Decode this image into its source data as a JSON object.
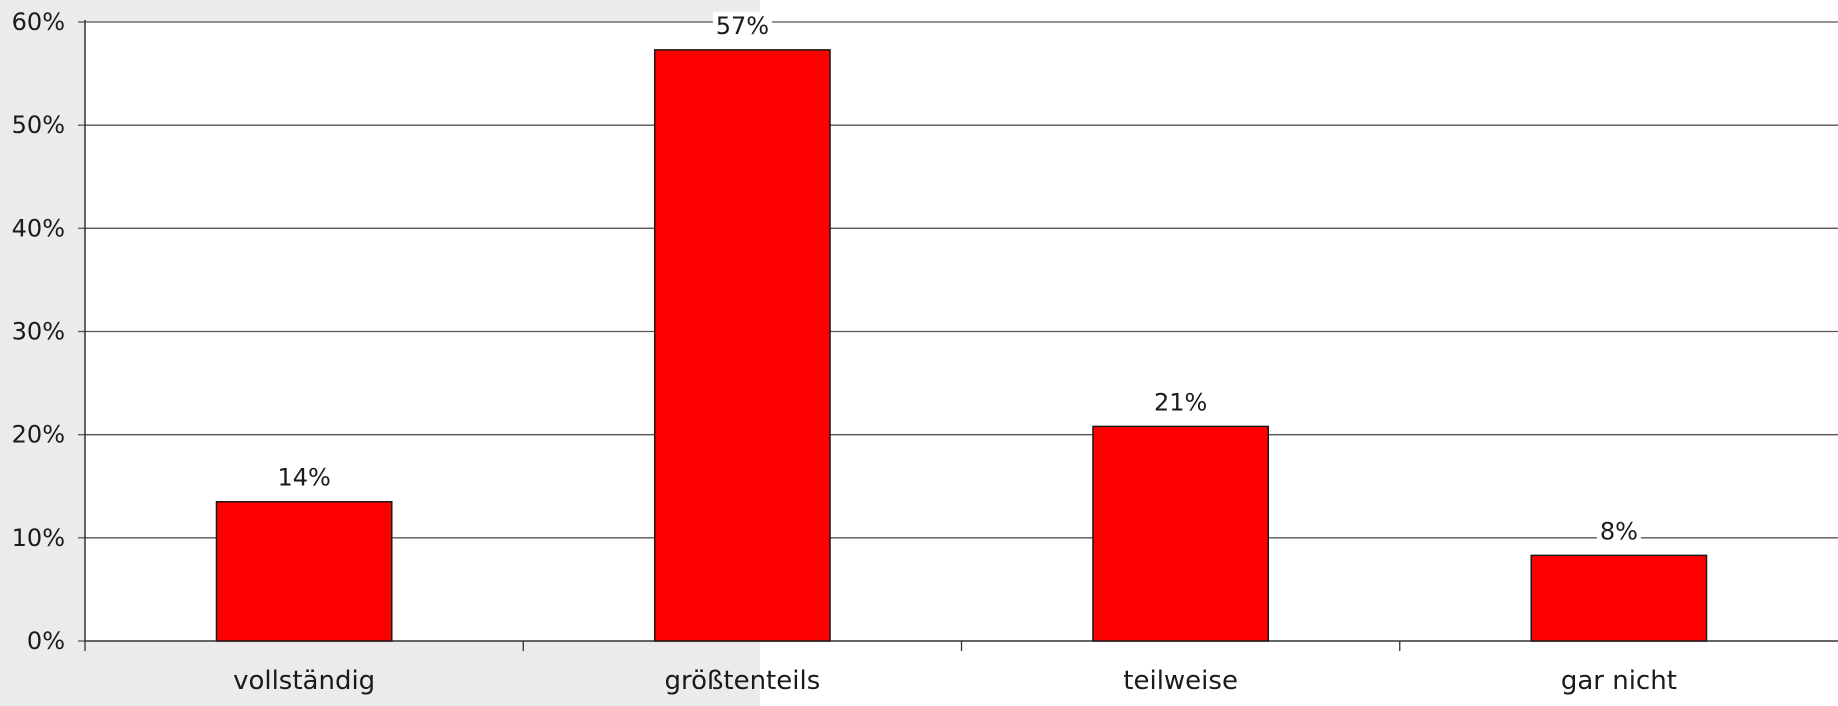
{
  "chart_data": {
    "type": "bar",
    "categories": [
      "vollständig",
      "größtenteils",
      "teilweise",
      "gar nicht"
    ],
    "values": [
      13.5,
      57.3,
      20.8,
      8.3
    ],
    "data_labels": [
      "14%",
      "57%",
      "21%",
      "8%"
    ],
    "title": "",
    "xlabel": "",
    "ylabel": "",
    "ylim": [
      0,
      60
    ],
    "yticks": [
      0,
      10,
      20,
      30,
      40,
      50,
      60
    ],
    "ytick_labels": [
      "0%",
      "10%",
      "20%",
      "30%",
      "40%",
      "50%",
      "60%"
    ],
    "grid": true,
    "legend": "none"
  },
  "colors": {
    "bar_fill": "#ff0000",
    "bar_stroke": "#1a1a1a",
    "grid": "#555555",
    "page_background_shade": "#ebebeb"
  }
}
